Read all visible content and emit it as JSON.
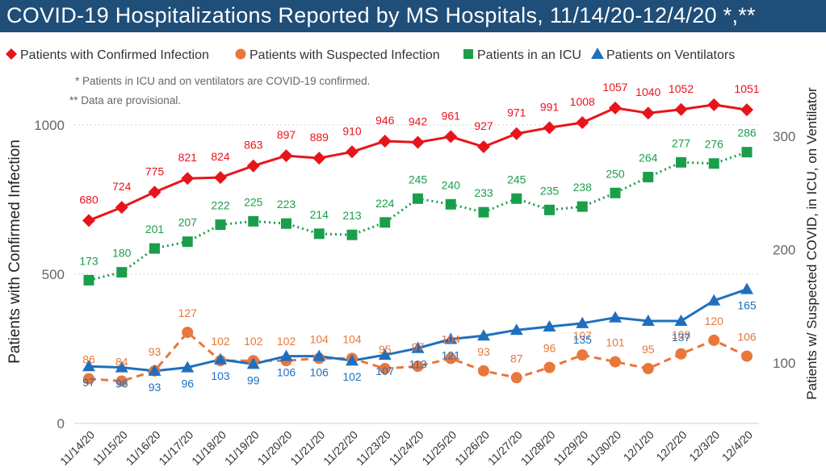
{
  "title": "COVID-19 Hospitalizations Reported by MS Hospitals, 11/14/20-12/4/20 *,**",
  "notes": [
    "* Patients in ICU and on ventilators are COVID-19 confirmed.",
    "** Data are provisional."
  ],
  "colors": {
    "title_bg": "#1f4e79",
    "confirmed": "#e8141b",
    "suspected": "#e8773a",
    "icu": "#1b9e4b",
    "vent": "#1f6fbf"
  },
  "chart_data": {
    "type": "line",
    "title": "COVID-19 Hospitalizations Reported by MS Hospitals, 11/14/20-12/4/20 *,**",
    "ylabel": "Patients with Confirmed Infection",
    "y2label": "Patients w/ Suspected COVID, in ICU, on Ventilator",
    "ylim": [
      0,
      1000
    ],
    "y2lim": [
      0,
      300
    ],
    "yticks": [
      "0",
      "500",
      "1000"
    ],
    "y2ticks": [
      "100",
      "200",
      "300"
    ],
    "categories": [
      "11/14/20",
      "11/15/20",
      "11/16/20",
      "11/17/20",
      "11/18/20",
      "11/19/20",
      "11/20/20",
      "11/21/20",
      "11/22/20",
      "11/23/20",
      "11/24/20",
      "11/25/20",
      "11/26/20",
      "11/27/20",
      "11/28/20",
      "11/29/20",
      "11/30/20",
      "12/1/20",
      "12/2/20",
      "12/3/20",
      "12/4/20"
    ],
    "legend_position": "top",
    "grid": true,
    "series": [
      {
        "name": "Patients with Confirmed Infection",
        "axis": "left",
        "marker": "diamond",
        "style": "solid",
        "values": [
          680,
          724,
          775,
          821,
          824,
          863,
          897,
          889,
          910,
          946,
          942,
          961,
          927,
          971,
          991,
          1008,
          1057,
          1040,
          1052,
          1068,
          1051
        ],
        "labels": [
          "680",
          "724",
          "775",
          "821",
          "824",
          "863",
          "897",
          "889",
          "910",
          "946",
          "942",
          "961",
          "927",
          "971",
          "991",
          "1008",
          "1057",
          "1040",
          "1052",
          "",
          "1051"
        ]
      },
      {
        "name": "Patients with Suspected Infection",
        "axis": "right",
        "marker": "circle",
        "style": "dashed",
        "values": [
          86,
          84,
          93,
          127,
          102,
          102,
          102,
          104,
          104,
          95,
          97,
          104,
          93,
          87,
          96,
          107,
          101,
          95,
          108,
          120,
          106
        ],
        "labels": [
          "86",
          "84",
          "93",
          "127",
          "102",
          "102",
          "102",
          "104",
          "104",
          "95",
          "97",
          "104",
          "93",
          "87",
          "96",
          "107",
          "101",
          "95",
          "108",
          "120",
          "106"
        ]
      },
      {
        "name": "Patients in an ICU",
        "axis": "right",
        "marker": "square",
        "style": "dotted",
        "values": [
          173,
          180,
          201,
          207,
          222,
          225,
          223,
          214,
          213,
          224,
          245,
          240,
          233,
          245,
          235,
          238,
          250,
          264,
          277,
          276,
          286
        ],
        "labels": [
          "173",
          "180",
          "201",
          "207",
          "222",
          "225",
          "223",
          "214",
          "213",
          "224",
          "245",
          "240",
          "233",
          "245",
          "235",
          "238",
          "250",
          "264",
          "277",
          "276",
          "286"
        ]
      },
      {
        "name": "Patients on Ventilators",
        "axis": "right",
        "marker": "triangle",
        "style": "solid",
        "values": [
          97,
          96,
          93,
          96,
          103,
          99,
          106,
          106,
          102,
          107,
          113,
          121,
          124,
          129,
          132,
          135,
          140,
          137,
          137,
          155,
          165
        ],
        "labels": [
          "97",
          "96",
          "93",
          "96",
          "103",
          "99",
          "106",
          "106",
          "102",
          "107",
          "113",
          "121",
          "",
          "",
          "",
          "135",
          "",
          "",
          "137",
          "",
          "165"
        ]
      }
    ]
  }
}
